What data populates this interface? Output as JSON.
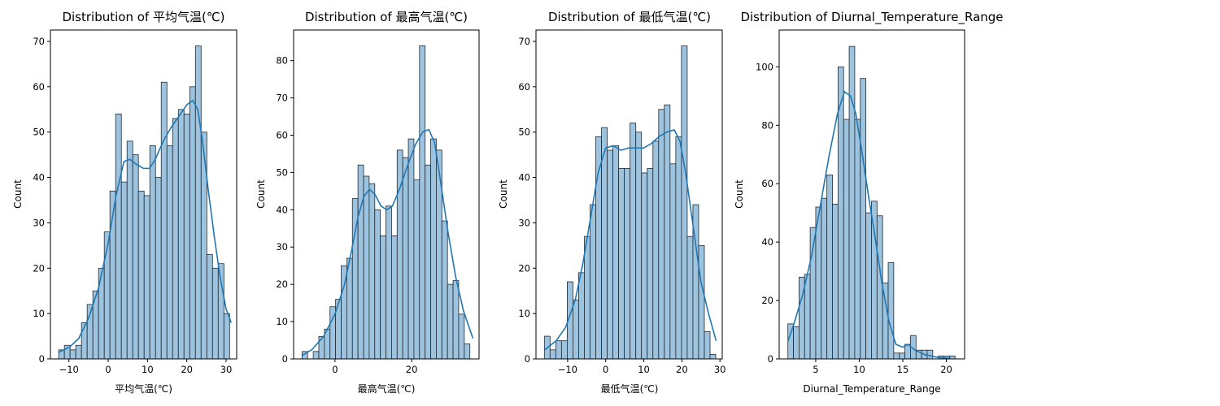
{
  "chart_data": [
    {
      "type": "bar",
      "title": "Distribution of 平均气温(℃)",
      "xlabel": "平均气温(℃)",
      "ylabel": "Count",
      "xlim": [
        -14.7,
        32.7
      ],
      "ylim": [
        0,
        72.5
      ],
      "xticks": [
        -10,
        0,
        10,
        20,
        30
      ],
      "yticks": [
        0,
        10,
        20,
        30,
        40,
        50,
        60,
        70
      ],
      "bins": {
        "start": -12.6,
        "width": 1.45
      },
      "values": [
        2,
        3,
        2,
        3,
        8,
        12,
        15,
        20,
        28,
        37,
        54,
        39,
        48,
        45,
        37,
        36,
        47,
        40,
        61,
        47,
        53,
        55,
        54,
        60,
        69,
        50,
        23,
        20,
        21,
        10
      ],
      "kde": [
        [
          -12.5,
          1.5
        ],
        [
          -10,
          2.5
        ],
        [
          -7.5,
          4.5
        ],
        [
          -5,
          9
        ],
        [
          -2.5,
          15.5
        ],
        [
          0,
          25.5
        ],
        [
          2,
          36
        ],
        [
          4,
          43.5
        ],
        [
          5.5,
          44
        ],
        [
          7,
          43
        ],
        [
          9,
          42
        ],
        [
          10.5,
          42
        ],
        [
          12,
          44
        ],
        [
          14,
          48
        ],
        [
          16,
          51
        ],
        [
          18,
          53.5
        ],
        [
          20,
          56
        ],
        [
          21.5,
          57
        ],
        [
          22.8,
          55
        ],
        [
          24,
          48
        ],
        [
          25.5,
          37
        ],
        [
          27,
          27
        ],
        [
          28.5,
          18
        ],
        [
          30,
          11
        ],
        [
          31.3,
          8
        ]
      ],
      "bar_color": "#9ec3de",
      "line_color": "#1f77b4"
    },
    {
      "type": "bar",
      "title": "Distribution of 最高气温(℃)",
      "xlabel": "最高气温(℃)",
      "ylabel": "Count",
      "xlim": [
        -10.8,
        37.6
      ],
      "ylim": [
        0,
        88.2
      ],
      "xticks": [
        0,
        20
      ],
      "yticks": [
        0,
        10,
        20,
        30,
        40,
        50,
        60,
        70,
        80
      ],
      "bins": {
        "start": -8.6,
        "width": 1.46
      },
      "values": [
        2,
        0,
        2,
        6,
        8,
        14,
        16,
        25,
        27,
        43,
        52,
        49,
        47,
        40,
        33,
        41,
        33,
        56,
        54,
        59,
        48,
        84,
        52,
        59,
        56,
        37,
        20,
        21,
        12,
        4
      ],
      "kde": [
        [
          -8.5,
          1
        ],
        [
          -6,
          2.5
        ],
        [
          -3,
          6
        ],
        [
          0,
          12
        ],
        [
          2.5,
          20
        ],
        [
          4.5,
          30
        ],
        [
          6,
          38
        ],
        [
          7.5,
          43.5
        ],
        [
          9,
          45.5
        ],
        [
          10.5,
          44
        ],
        [
          12,
          41
        ],
        [
          13.5,
          40
        ],
        [
          15,
          41
        ],
        [
          17,
          46
        ],
        [
          19,
          52
        ],
        [
          21,
          57.5
        ],
        [
          23,
          61
        ],
        [
          24.5,
          61.5
        ],
        [
          26,
          58
        ],
        [
          27.5,
          48
        ],
        [
          29.5,
          34
        ],
        [
          31.5,
          22
        ],
        [
          33.5,
          13
        ],
        [
          36,
          5.5
        ]
      ],
      "bar_color": "#9ec3de",
      "line_color": "#1f77b4"
    },
    {
      "type": "bar",
      "title": "Distribution of 最低气温(℃)",
      "xlabel": "最低气温(℃)",
      "ylabel": "Count",
      "xlim": [
        -18.3,
        30.6
      ],
      "ylim": [
        0,
        72.5
      ],
      "xticks": [
        -10,
        0,
        10,
        20,
        30
      ],
      "yticks": [
        0,
        10,
        20,
        30,
        40,
        50,
        60,
        70
      ],
      "bins": {
        "start": -16.1,
        "width": 1.5
      },
      "values": [
        5,
        2,
        4,
        4,
        17,
        13,
        19,
        27,
        34,
        49,
        51,
        46,
        47,
        42,
        42,
        52,
        50,
        41,
        42,
        48,
        55,
        56,
        43,
        49,
        69,
        27,
        34,
        25,
        6,
        1
      ],
      "kde": [
        [
          -16,
          2
        ],
        [
          -13,
          4
        ],
        [
          -10.5,
          7
        ],
        [
          -8,
          13
        ],
        [
          -6,
          21
        ],
        [
          -4,
          31
        ],
        [
          -2,
          41
        ],
        [
          0,
          46.5
        ],
        [
          2,
          47
        ],
        [
          4,
          46
        ],
        [
          6,
          46.5
        ],
        [
          8,
          46.5
        ],
        [
          10,
          46.5
        ],
        [
          12,
          47.5
        ],
        [
          14,
          49
        ],
        [
          16,
          50
        ],
        [
          18,
          50.5
        ],
        [
          19.5,
          48
        ],
        [
          21,
          41
        ],
        [
          23,
          29
        ],
        [
          25,
          17
        ],
        [
          27,
          10
        ],
        [
          29,
          4
        ]
      ],
      "bar_color": "#9ec3de",
      "line_color": "#1f77b4"
    },
    {
      "type": "bar",
      "title": "Distribution of Diurnal_Temperature_Range",
      "xlabel": "Diurnal_Temperature_Range",
      "ylabel": "Count",
      "xlim": [
        0.8,
        22.1
      ],
      "ylim": [
        0,
        112.6
      ],
      "xticks": [
        5,
        10,
        15,
        20
      ],
      "yticks": [
        0,
        20,
        40,
        60,
        80,
        100
      ],
      "bins": {
        "start": 1.8,
        "width": 0.64
      },
      "values": [
        12,
        11,
        28,
        29,
        45,
        52,
        55,
        63,
        53,
        100,
        82,
        107,
        82,
        96,
        50,
        54,
        49,
        26,
        33,
        2,
        2,
        5,
        8,
        3,
        3,
        3,
        0,
        1,
        1,
        1
      ],
      "kde": [
        [
          1.8,
          6
        ],
        [
          2.5,
          12
        ],
        [
          3.5,
          22
        ],
        [
          4.5,
          35
        ],
        [
          5.5,
          52
        ],
        [
          6.5,
          69
        ],
        [
          7.5,
          84
        ],
        [
          8.3,
          91.5
        ],
        [
          9,
          90
        ],
        [
          9.6,
          84
        ],
        [
          10.3,
          71
        ],
        [
          11,
          57
        ],
        [
          11.8,
          42
        ],
        [
          12.6,
          26
        ],
        [
          13.4,
          13
        ],
        [
          14.2,
          5
        ],
        [
          15,
          4
        ],
        [
          15.6,
          5
        ],
        [
          16.4,
          3
        ],
        [
          17.5,
          1.5
        ],
        [
          19,
          0.5
        ],
        [
          20.5,
          0.2
        ]
      ],
      "bar_color": "#9ec3de",
      "line_color": "#1f77b4"
    }
  ]
}
